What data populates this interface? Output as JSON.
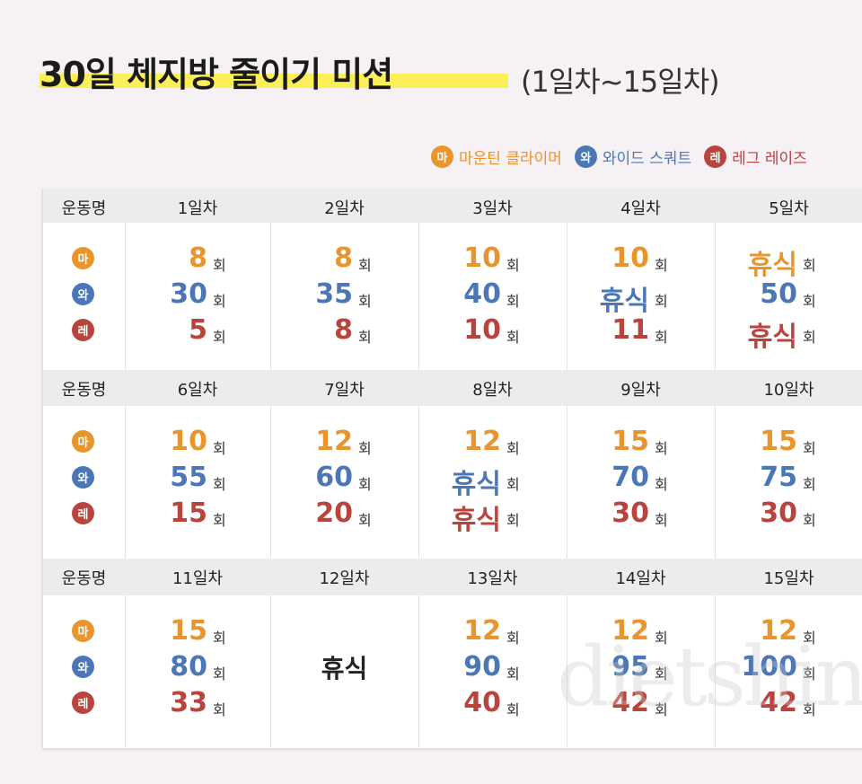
{
  "header": {
    "title": "30일 체지방 줄이기 미션",
    "subtitle": "(1일차~15일차)"
  },
  "legend": {
    "items": [
      {
        "icon": "마",
        "label": "마운틴 클라이머",
        "color": "#e8952e"
      },
      {
        "icon": "와",
        "label": "와이드 스쿼트",
        "color": "#4b77b6"
      },
      {
        "icon": "레",
        "label": "레그 레이즈",
        "color": "#b9443e"
      }
    ]
  },
  "table": {
    "header_label": "운동명",
    "unit": "회",
    "blocks": [
      {
        "days": [
          {
            "label": "1일차",
            "values": [
              8,
              30,
              5
            ]
          },
          {
            "label": "2일차",
            "values": [
              8,
              35,
              8
            ]
          },
          {
            "label": "3일차",
            "values": [
              10,
              40,
              10
            ]
          },
          {
            "label": "4일차",
            "values": [
              10,
              "휴식",
              11
            ]
          },
          {
            "label": "5일차",
            "values": [
              "휴식",
              50,
              "휴식"
            ]
          }
        ]
      },
      {
        "days": [
          {
            "label": "6일차",
            "values": [
              10,
              55,
              15
            ]
          },
          {
            "label": "7일차",
            "values": [
              12,
              60,
              20
            ]
          },
          {
            "label": "8일차",
            "values": [
              12,
              "휴식",
              "휴식"
            ]
          },
          {
            "label": "9일차",
            "values": [
              15,
              70,
              30
            ]
          },
          {
            "label": "10일차",
            "values": [
              15,
              75,
              30
            ]
          }
        ]
      },
      {
        "days": [
          {
            "label": "11일차",
            "values": [
              15,
              80,
              33
            ]
          },
          {
            "label": "12일차",
            "rest": "휴식"
          },
          {
            "label": "13일차",
            "values": [
              12,
              90,
              40
            ]
          },
          {
            "label": "14일차",
            "values": [
              12,
              95,
              42
            ]
          },
          {
            "label": "15일차",
            "values": [
              12,
              100,
              42
            ]
          }
        ]
      }
    ]
  },
  "watermark": "dietshin.com"
}
